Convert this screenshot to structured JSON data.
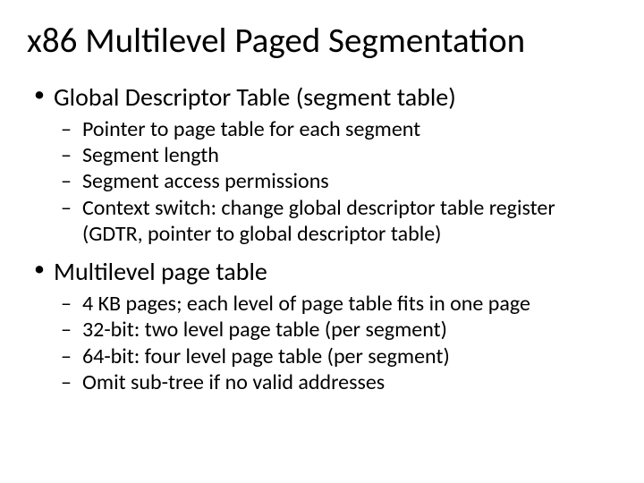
{
  "slide": {
    "title": "x86 Multilevel Paged Segmentation",
    "bullets": [
      {
        "text": "Global Descriptor Table (segment table)",
        "sub": [
          "Pointer to page table for each segment",
          "Segment length",
          "Segment access permissions",
          "Context switch: change global descriptor table register (GDTR, pointer to global descriptor table)"
        ]
      },
      {
        "text": "Multilevel page table",
        "sub": [
          "4 KB pages; each level of page table fits in one page",
          "32-bit: two level page table (per segment)",
          "64-bit: four level page table (per segment)",
          "Omit sub-tree if no valid addresses"
        ]
      }
    ],
    "style": {
      "background_color": "#ffffff",
      "text_color": "#000000",
      "title_fontsize": 39,
      "level1_fontsize": 28,
      "level2_fontsize": 24,
      "font_family": "Calibri"
    }
  }
}
